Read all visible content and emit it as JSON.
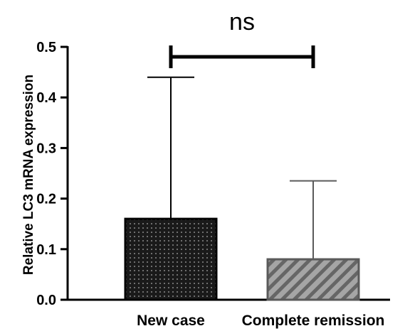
{
  "chart_data": {
    "type": "bar",
    "title": "",
    "xlabel": "",
    "ylabel": "Relative LC3 mRNA expression",
    "ylim": [
      0,
      0.5
    ],
    "yticks": [
      0.0,
      0.1,
      0.2,
      0.3,
      0.4,
      0.5
    ],
    "ytick_labels": [
      "0.0",
      "0.1",
      "0.2",
      "0.3",
      "0.4",
      "0.5"
    ],
    "categories": [
      "New case",
      "Complete remission"
    ],
    "values": [
      0.16,
      0.08
    ],
    "error_upper": [
      0.44,
      0.235
    ],
    "bar_styles": [
      {
        "fill": "#1a1a1a",
        "pattern": "dots",
        "pattern_color": "#888888",
        "stroke": "#000000"
      },
      {
        "fill": "#9a9a9a",
        "pattern": "diagonal-stripes",
        "pattern_color": "#6a6a6a",
        "stroke": "#5a5a5a"
      }
    ],
    "grid": false,
    "significance": {
      "between": [
        0,
        1
      ],
      "label": "ns"
    }
  }
}
